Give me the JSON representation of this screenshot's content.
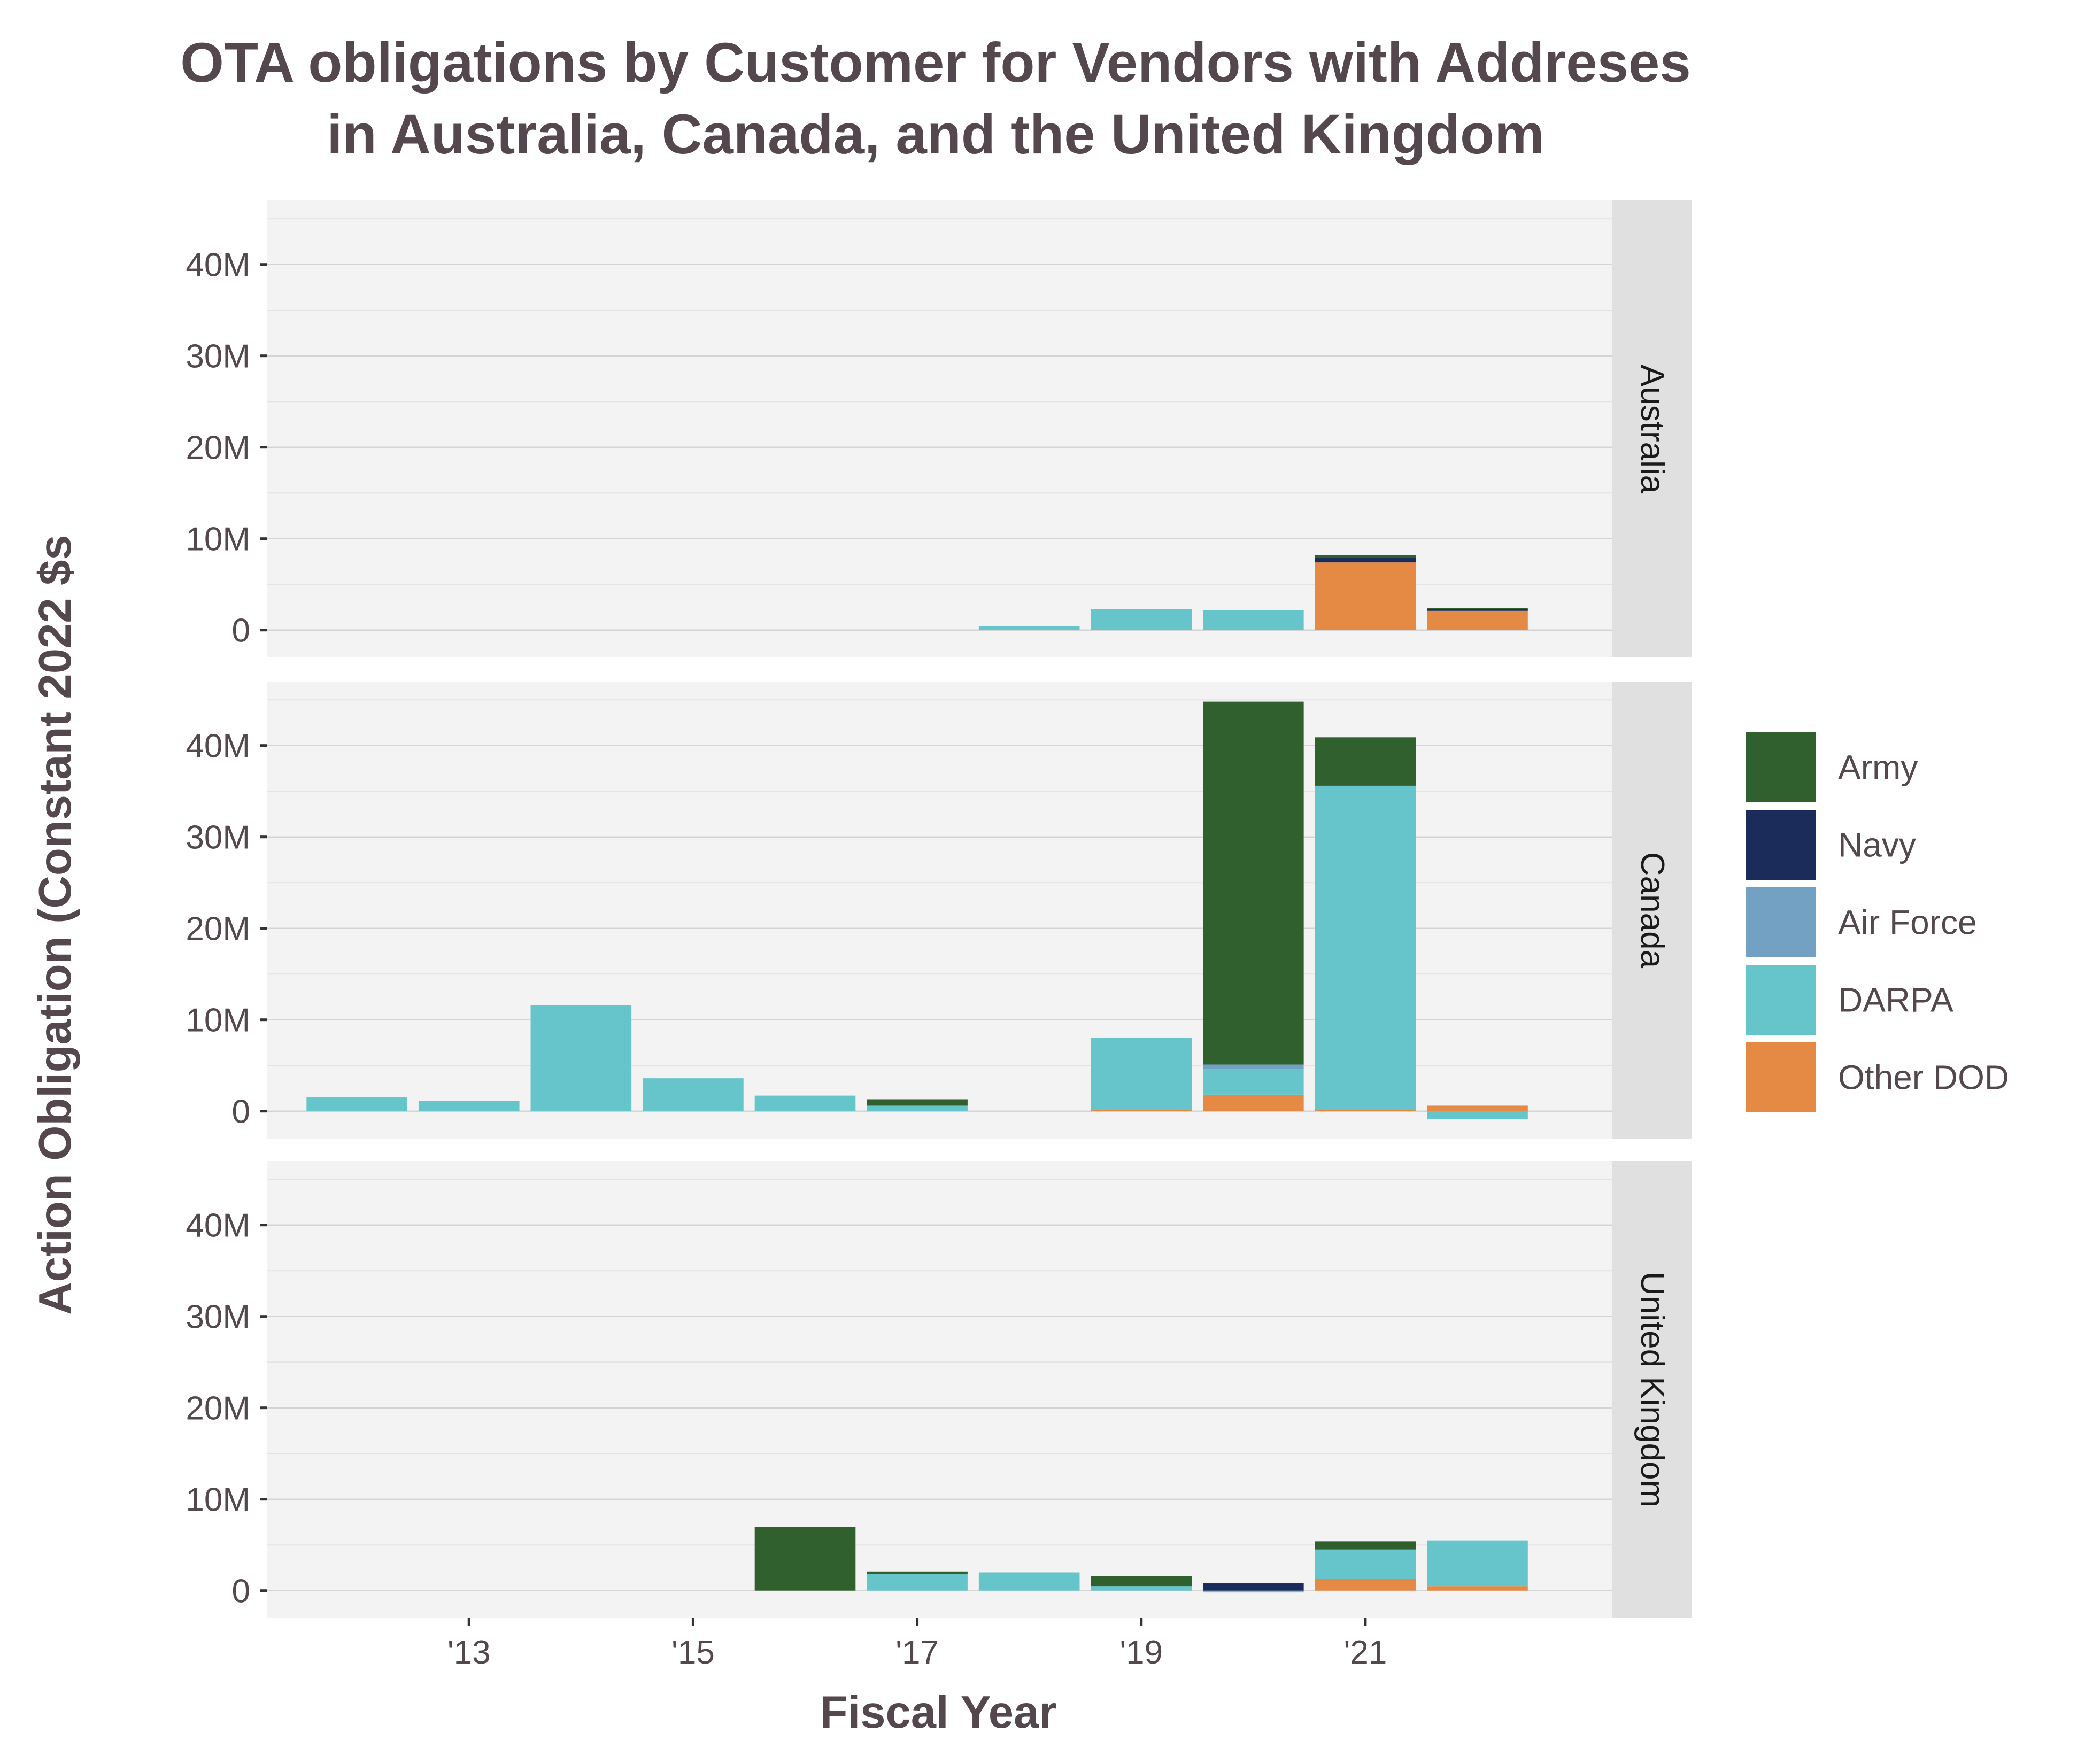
{
  "chart_data": {
    "type": "bar",
    "stacked": true,
    "title": [
      "OTA obligations by Customer for Vendors with Addreses",
      "in Australia, Canada, and the United Kingdom"
    ],
    "xlabel": "Fiscal Year",
    "ylabel": "Action Obligation (Constant 2022 $s",
    "x": [
      2012,
      2013,
      2014,
      2015,
      2016,
      2017,
      2018,
      2019,
      2020,
      2021,
      2022
    ],
    "x_ticks": [
      2013,
      2015,
      2017,
      2019,
      2021
    ],
    "x_tick_labels": [
      "'13",
      "'15",
      "'17",
      "'19",
      "'21"
    ],
    "xlim": [
      2011.2,
      2023.2
    ],
    "ylim": [
      -3,
      47
    ],
    "y_ticks": [
      0,
      10,
      20,
      30,
      40
    ],
    "y_tick_labels": [
      "0",
      "10M",
      "20M",
      "30M",
      "40M"
    ],
    "y_units": "millions of constant 2022 dollars",
    "legend_position": "right",
    "series": [
      {
        "name": "Army",
        "color": "#31602f"
      },
      {
        "name": "Navy",
        "color": "#1c2c5a"
      },
      {
        "name": "Air Force",
        "color": "#72a1c3"
      },
      {
        "name": "DARPA",
        "color": "#66c5ca"
      },
      {
        "name": "Other DOD",
        "color": "#e58a45"
      }
    ],
    "panels": [
      {
        "name": "Australia",
        "values": {
          "Army": [
            0,
            0,
            0,
            0,
            0,
            0,
            0,
            0,
            0,
            0.3,
            0.1
          ],
          "Navy": [
            0,
            0,
            0,
            0,
            0,
            0,
            0,
            0,
            0,
            0.5,
            0.2
          ],
          "Air Force": [
            0,
            0,
            0,
            0,
            0,
            0,
            0,
            0,
            0,
            0,
            0
          ],
          "DARPA": [
            0,
            0,
            0,
            0,
            0,
            0,
            0.4,
            2.3,
            2.2,
            0,
            0
          ],
          "Other DOD": [
            0,
            0,
            0,
            0,
            0,
            0,
            0,
            0,
            0,
            7.4,
            2.1
          ]
        }
      },
      {
        "name": "Canada",
        "values": {
          "Army": [
            0,
            0,
            0,
            0,
            0,
            0.7,
            0,
            0,
            39.7,
            5.3,
            0
          ],
          "Navy": [
            0,
            0,
            0,
            0,
            0,
            0,
            0,
            0,
            0,
            0,
            0
          ],
          "Air Force": [
            0,
            0,
            0,
            0,
            0,
            0,
            0,
            0,
            0.5,
            0,
            0
          ],
          "DARPA": [
            1.5,
            1.1,
            11.6,
            3.6,
            1.7,
            0.6,
            0,
            7.8,
            2.8,
            35.5,
            -0.9
          ],
          "Other DOD": [
            0,
            0,
            0,
            0,
            0,
            0,
            0,
            0.2,
            1.8,
            0.1,
            0.6
          ]
        }
      },
      {
        "name": "United Kingdom",
        "values": {
          "Army": [
            0,
            0,
            0,
            0,
            7.0,
            0.3,
            0,
            1.1,
            0,
            0.9,
            0
          ],
          "Navy": [
            0,
            0,
            0,
            0,
            0,
            0,
            0,
            0,
            0.8,
            0,
            0
          ],
          "Air Force": [
            0,
            0,
            0,
            0,
            0,
            0,
            0,
            0,
            0,
            0,
            0
          ],
          "DARPA": [
            0,
            0,
            0,
            0,
            0,
            1.8,
            2.0,
            0.5,
            -0.2,
            3.2,
            5.0
          ],
          "Other DOD": [
            0,
            0,
            0,
            0,
            0,
            0,
            0,
            0,
            0,
            1.3,
            0.5
          ]
        }
      }
    ]
  }
}
